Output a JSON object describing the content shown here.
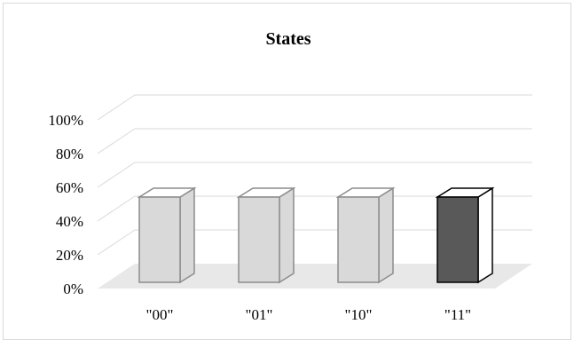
{
  "chart_data": {
    "type": "bar",
    "title": "States",
    "xlabel": "",
    "ylabel": "",
    "categories": [
      "\"00\"",
      "\"01\"",
      "\"10\"",
      "\"11\""
    ],
    "series": [
      {
        "values": [
          50,
          50,
          50,
          50
        ]
      }
    ],
    "ylim": [
      0,
      100
    ],
    "y_ticks": [
      "0%",
      "20%",
      "40%",
      "60%",
      "80%",
      "100%"
    ],
    "y_tick_values": [
      0,
      20,
      40,
      60,
      80,
      100
    ],
    "grid": true,
    "legend": "none",
    "style": "3d-column",
    "colors": {
      "bar_fill": [
        "#d9d9d9",
        "#d9d9d9",
        "#d9d9d9",
        "#595959"
      ],
      "bar_stroke": [
        "#8c8c8c",
        "#8c8c8c",
        "#8c8c8c",
        "#000000"
      ],
      "floor": "#e8e8e8",
      "grid": "#d9d9d9",
      "frame": "#d9d9d9"
    }
  }
}
